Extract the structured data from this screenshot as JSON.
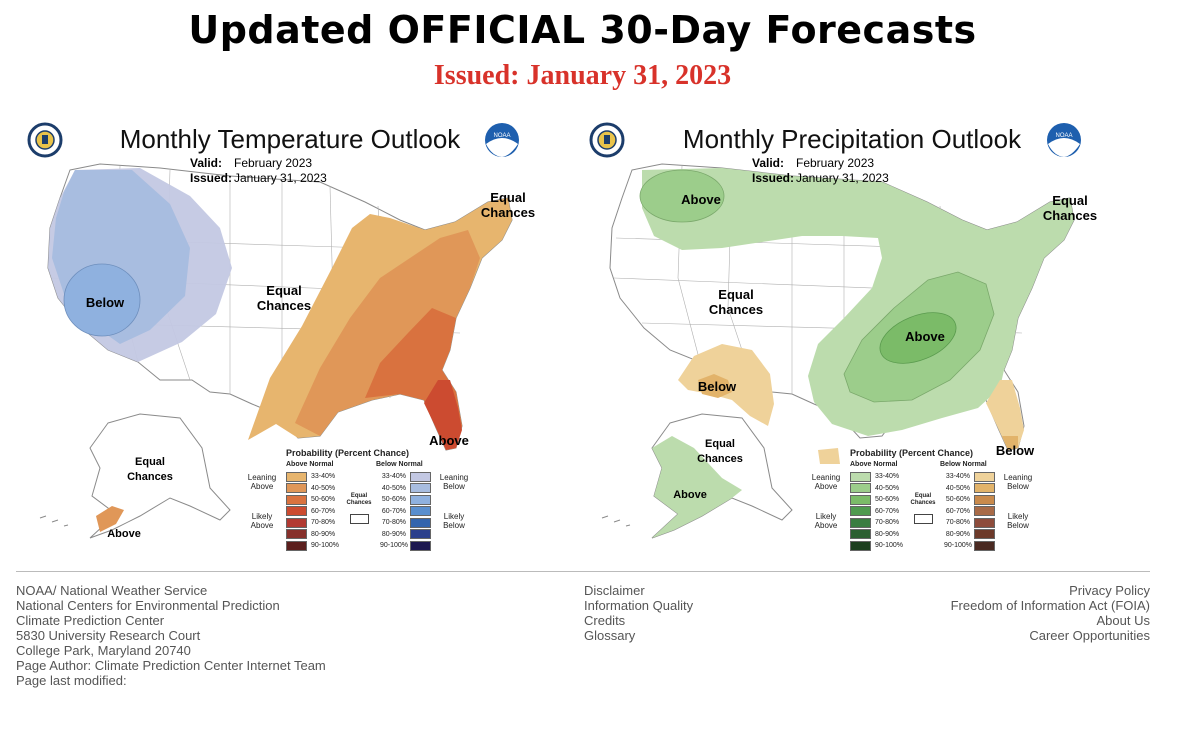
{
  "header": {
    "title": "Updated OFFICIAL 30-Day Forecasts",
    "issued": "Issued: January 31, 2023",
    "issued_color": "#d8322a"
  },
  "temperature": {
    "title": "Monthly Temperature Outlook",
    "valid_label": "Valid:",
    "valid_value": "February 2023",
    "issued_label": "Issued:",
    "issued_value": "January 31, 2023",
    "regions": {
      "below": "Below",
      "equal": "Equal Chances",
      "equal_ne": "Equal Chances",
      "above_fl": "Above",
      "equal_ak": "Equal Chances",
      "above_ak": "Above"
    }
  },
  "precipitation": {
    "title": "Monthly Precipitation Outlook",
    "valid_label": "Valid:",
    "valid_value": "February 2023",
    "issued_label": "Issued:",
    "issued_value": "January 31, 2023",
    "regions": {
      "above_nw": "Above",
      "equal_west": "Equal Chances",
      "equal_ne": "Equal Chances",
      "above_ov": "Above",
      "below_sw": "Below",
      "below_fl": "Below",
      "equal_ak": "Equal Chances",
      "above_ak": "Above"
    }
  },
  "legend_temp": {
    "title": "Probability (Percent Chance)",
    "above_head": "Above Normal",
    "below_head": "Below Normal",
    "leaning_above": "Leaning Above",
    "likely_above": "Likely Above",
    "leaning_below": "Leaning Below",
    "likely_below": "Likely Below",
    "equal": "Equal Chances",
    "ranges": [
      "33-40%",
      "40-50%",
      "50-60%",
      "60-70%",
      "70-80%",
      "80-90%",
      "90-100%"
    ],
    "above_colors": [
      "#e7b56e",
      "#e09758",
      "#d9723f",
      "#cc4b30",
      "#b23a32",
      "#87302b",
      "#5b1f1d"
    ],
    "below_colors": [
      "#c3c8e3",
      "#a8bde0",
      "#8fb1df",
      "#5a8fcf",
      "#3465ad",
      "#2b3f8c",
      "#1d1850"
    ]
  },
  "legend_precip": {
    "title": "Probability (Percent Chance)",
    "above_head": "Above Normal",
    "below_head": "Below Normal",
    "leaning_above": "Leaning Above",
    "likely_above": "Likely Above",
    "leaning_below": "Leaning Below",
    "likely_below": "Likely Below",
    "equal": "Equal Chances",
    "ranges": [
      "33-40%",
      "40-50%",
      "50-60%",
      "60-70%",
      "70-80%",
      "80-90%",
      "90-100%"
    ],
    "above_colors": [
      "#bcdcad",
      "#9ccd8b",
      "#7bbb68",
      "#4f9a4f",
      "#3a7d41",
      "#2c5f31",
      "#1d3f1f"
    ],
    "below_colors": [
      "#efd29a",
      "#e2b36a",
      "#c98a4c",
      "#a86a47",
      "#8d4c3c",
      "#6d3a2a",
      "#4a2a22"
    ]
  },
  "footer": {
    "left": [
      "NOAA/ National Weather Service",
      "National Centers for Environmental Prediction",
      "Climate Prediction Center",
      "5830 University Research Court",
      "College Park, Maryland 20740",
      "Page Author: Climate Prediction Center Internet Team",
      "Page last modified:"
    ],
    "middle": [
      "Disclaimer",
      "Information Quality",
      "Credits",
      "Glossary"
    ],
    "right": [
      "Privacy Policy",
      "Freedom of Information Act (FOIA)",
      "About Us",
      "Career Opportunities"
    ]
  },
  "logos": {
    "noaa_text": "NOAA"
  }
}
